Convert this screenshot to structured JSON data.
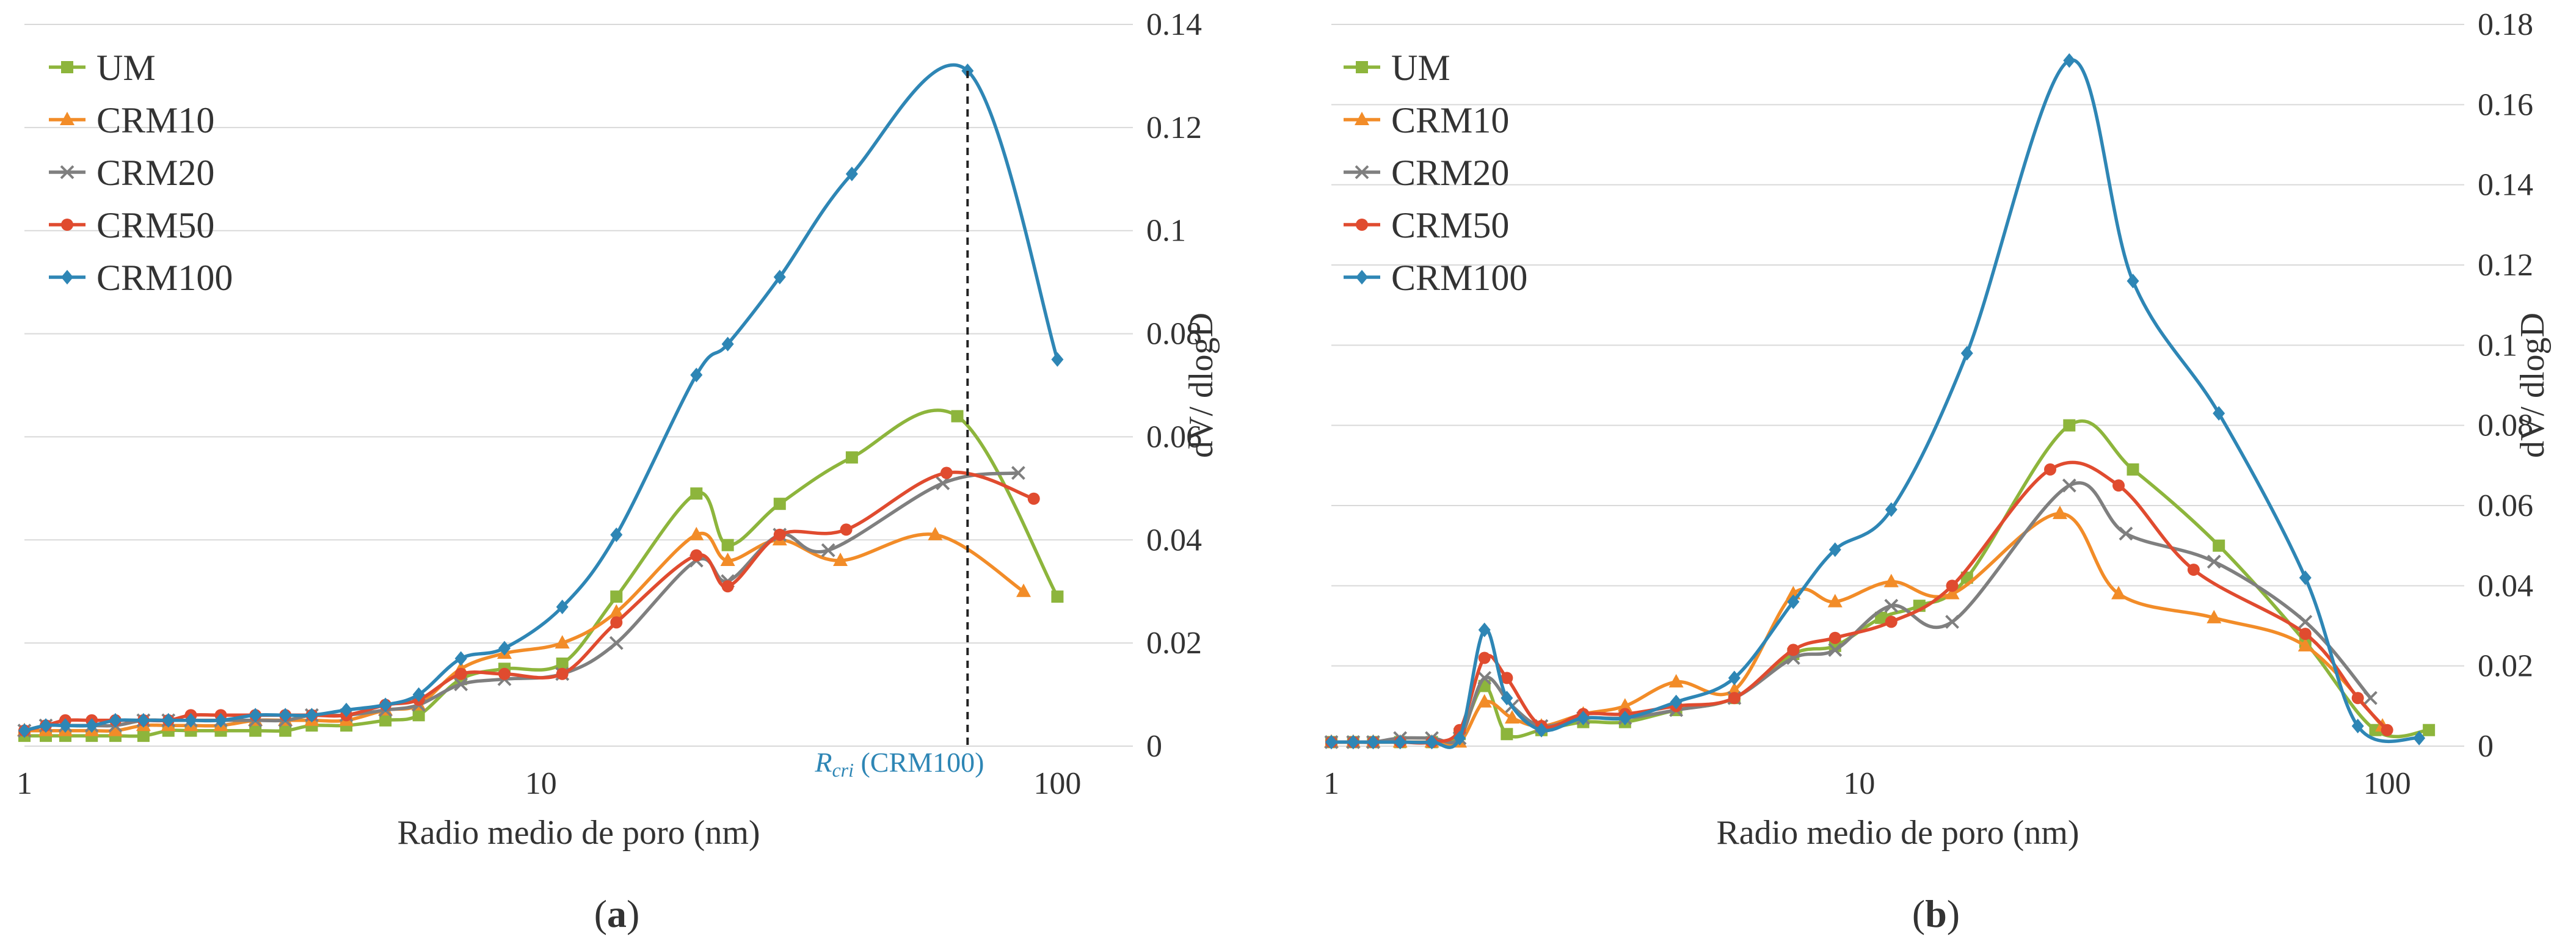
{
  "chart_data": [
    {
      "id": "a",
      "type": "line",
      "panel_label": "(a)",
      "xlabel": "Radio medio de poro (nm)",
      "ylabel": "dV/ dlogD",
      "xscale": "log",
      "xlim": [
        1,
        140
      ],
      "ylim": [
        0,
        0.14
      ],
      "x_ticks": [
        "1",
        "10",
        "100"
      ],
      "y_ticks": [
        "0",
        "0.02",
        "0.04",
        "0.06",
        "0.08",
        "0.1",
        "0.12",
        "0.14"
      ],
      "legend_position": "top-left",
      "series": [
        {
          "name": "UM",
          "color": "#8db53c",
          "marker": "square",
          "x": [
            1,
            1.1,
            1.2,
            1.35,
            1.5,
            1.7,
            1.9,
            2.1,
            2.4,
            2.8,
            3.2,
            3.6,
            4.2,
            5,
            5.8,
            7,
            8.5,
            11,
            14,
            20,
            23,
            29,
            40,
            64,
            100
          ],
          "y": [
            0.002,
            0.002,
            0.002,
            0.002,
            0.002,
            0.002,
            0.003,
            0.003,
            0.003,
            0.003,
            0.003,
            0.004,
            0.004,
            0.005,
            0.006,
            0.013,
            0.015,
            0.016,
            0.029,
            0.049,
            0.039,
            0.047,
            0.056,
            0.064,
            0.029
          ]
        },
        {
          "name": "CRM10",
          "color": "#f28c28",
          "marker": "triangle",
          "x": [
            1,
            1.1,
            1.2,
            1.35,
            1.5,
            1.7,
            1.9,
            2.1,
            2.4,
            2.8,
            3.2,
            3.6,
            4.2,
            5,
            5.8,
            7,
            8.5,
            11,
            14,
            20,
            23,
            29,
            38,
            58,
            86
          ],
          "y": [
            0.003,
            0.003,
            0.003,
            0.003,
            0.003,
            0.004,
            0.004,
            0.004,
            0.004,
            0.005,
            0.005,
            0.005,
            0.005,
            0.007,
            0.008,
            0.015,
            0.018,
            0.02,
            0.026,
            0.041,
            0.036,
            0.04,
            0.036,
            0.041,
            0.03
          ]
        },
        {
          "name": "CRM20",
          "color": "#7f7f7f",
          "marker": "cross",
          "x": [
            1,
            1.1,
            1.2,
            1.35,
            1.5,
            1.7,
            1.9,
            2.1,
            2.4,
            2.8,
            3.2,
            3.6,
            4.2,
            5,
            5.8,
            7,
            8.5,
            11,
            14,
            20,
            23,
            29,
            36,
            60,
            84
          ],
          "y": [
            0.003,
            0.004,
            0.004,
            0.004,
            0.004,
            0.005,
            0.005,
            0.005,
            0.005,
            0.005,
            0.005,
            0.006,
            0.006,
            0.007,
            0.008,
            0.012,
            0.013,
            0.014,
            0.02,
            0.036,
            0.032,
            0.041,
            0.038,
            0.051,
            0.053
          ]
        },
        {
          "name": "CRM50",
          "color": "#e04b2f",
          "marker": "circle",
          "x": [
            1,
            1.1,
            1.2,
            1.35,
            1.5,
            1.7,
            1.9,
            2.1,
            2.4,
            2.8,
            3.2,
            3.6,
            4.2,
            5,
            5.8,
            7,
            8.5,
            11,
            14,
            20,
            23,
            29,
            39,
            61,
            90
          ],
          "y": [
            0.003,
            0.004,
            0.005,
            0.005,
            0.005,
            0.005,
            0.005,
            0.006,
            0.006,
            0.006,
            0.006,
            0.006,
            0.006,
            0.008,
            0.009,
            0.014,
            0.014,
            0.014,
            0.024,
            0.037,
            0.031,
            0.041,
            0.042,
            0.053,
            0.048
          ]
        },
        {
          "name": "CRM100",
          "color": "#2e86b5",
          "marker": "diamond",
          "x": [
            1,
            1.1,
            1.2,
            1.35,
            1.5,
            1.7,
            1.9,
            2.1,
            2.4,
            2.8,
            3.2,
            3.6,
            4.2,
            5,
            5.8,
            7,
            8.5,
            11,
            14,
            20,
            23,
            29,
            40,
            67,
            100
          ],
          "y": [
            0.003,
            0.004,
            0.004,
            0.004,
            0.005,
            0.005,
            0.005,
            0.005,
            0.005,
            0.006,
            0.006,
            0.006,
            0.007,
            0.008,
            0.01,
            0.017,
            0.019,
            0.027,
            0.041,
            0.072,
            0.078,
            0.091,
            0.111,
            0.131,
            0.075
          ]
        }
      ],
      "annotations": [
        {
          "text_main": "R",
          "text_sub": "cri",
          "text_suffix": " (CRM100)",
          "x": 67,
          "color": "#2e86b5"
        }
      ]
    },
    {
      "id": "b",
      "type": "line",
      "panel_label": "(b)",
      "xlabel": "Radio medio de poro (nm)",
      "ylabel": "dV/ dlogD",
      "xscale": "log",
      "xlim": [
        1,
        140
      ],
      "ylim": [
        0,
        0.18
      ],
      "x_ticks": [
        "1",
        "10",
        "100"
      ],
      "y_ticks": [
        "0",
        "0.02",
        "0.04",
        "0.06",
        "0.08",
        "0.1",
        "0.12",
        "0.14",
        "0.16",
        "0.18"
      ],
      "legend_position": "top-left",
      "series": [
        {
          "name": "UM",
          "color": "#8db53c",
          "marker": "square",
          "x": [
            1,
            1.1,
            1.2,
            1.35,
            1.55,
            1.75,
            1.95,
            2.15,
            2.5,
            3,
            3.6,
            4.5,
            5.8,
            7.5,
            9,
            11,
            13,
            16,
            25,
            33,
            48,
            70,
            95,
            120
          ],
          "y": [
            0.001,
            0.001,
            0.001,
            0.001,
            0.001,
            0.003,
            0.015,
            0.003,
            0.004,
            0.006,
            0.006,
            0.009,
            0.012,
            0.023,
            0.025,
            0.032,
            0.035,
            0.042,
            0.08,
            0.069,
            0.05,
            0.026,
            0.004,
            0.004
          ]
        },
        {
          "name": "CRM10",
          "color": "#f28c28",
          "marker": "triangle",
          "x": [
            1,
            1.1,
            1.2,
            1.35,
            1.55,
            1.75,
            1.95,
            2.2,
            2.5,
            3,
            3.6,
            4.5,
            5.8,
            7.5,
            9,
            11.5,
            15,
            24,
            31,
            47,
            70,
            98
          ],
          "y": [
            0.001,
            0.001,
            0.001,
            0.001,
            0.001,
            0.001,
            0.011,
            0.007,
            0.005,
            0.008,
            0.01,
            0.016,
            0.014,
            0.038,
            0.036,
            0.041,
            0.038,
            0.058,
            0.038,
            0.032,
            0.025,
            0.005
          ]
        },
        {
          "name": "CRM20",
          "color": "#7f7f7f",
          "marker": "cross",
          "x": [
            1,
            1.1,
            1.2,
            1.35,
            1.55,
            1.75,
            1.95,
            2.2,
            2.5,
            3,
            3.6,
            4.5,
            5.8,
            7.5,
            9,
            11.5,
            15,
            25,
            32,
            47,
            70,
            93
          ],
          "y": [
            0.001,
            0.001,
            0.001,
            0.002,
            0.002,
            0.002,
            0.017,
            0.01,
            0.005,
            0.007,
            0.007,
            0.009,
            0.012,
            0.022,
            0.024,
            0.035,
            0.031,
            0.065,
            0.053,
            0.046,
            0.031,
            0.012
          ]
        },
        {
          "name": "CRM50",
          "color": "#e04b2f",
          "marker": "circle",
          "x": [
            1,
            1.1,
            1.2,
            1.35,
            1.55,
            1.75,
            1.95,
            2.15,
            2.5,
            3,
            3.6,
            4.5,
            5.8,
            7.5,
            9,
            11.5,
            15,
            23,
            31,
            43,
            70,
            88,
            100
          ],
          "y": [
            0.001,
            0.001,
            0.001,
            0.001,
            0.001,
            0.004,
            0.022,
            0.017,
            0.005,
            0.008,
            0.008,
            0.01,
            0.012,
            0.024,
            0.027,
            0.031,
            0.04,
            0.069,
            0.065,
            0.044,
            0.028,
            0.012,
            0.004
          ]
        },
        {
          "name": "CRM100",
          "color": "#2e86b5",
          "marker": "diamond",
          "x": [
            1,
            1.1,
            1.2,
            1.35,
            1.55,
            1.75,
            1.95,
            2.15,
            2.5,
            3,
            3.6,
            4.5,
            5.8,
            7.5,
            9,
            11.5,
            16,
            25,
            33,
            48,
            70,
            88,
            115
          ],
          "y": [
            0.001,
            0.001,
            0.001,
            0.001,
            0.001,
            0.002,
            0.029,
            0.012,
            0.004,
            0.007,
            0.007,
            0.011,
            0.017,
            0.036,
            0.049,
            0.059,
            0.098,
            0.171,
            0.116,
            0.083,
            0.042,
            0.005,
            0.002
          ]
        }
      ],
      "annotations": []
    }
  ]
}
